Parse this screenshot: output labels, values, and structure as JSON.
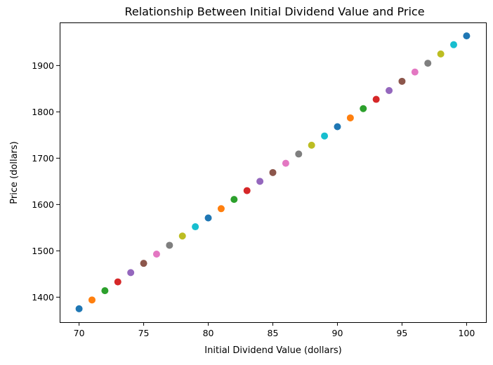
{
  "chart_data": {
    "type": "scatter",
    "title": "Relationship Between Initial Dividend Value and Price",
    "xlabel": "Initial Dividend Value (dollars)",
    "ylabel": "Price (dollars)",
    "xlim": [
      68.5,
      101.5
    ],
    "ylim": [
      1346,
      1993
    ],
    "xticks": [
      70,
      75,
      80,
      85,
      90,
      95,
      100
    ],
    "yticks": [
      1400,
      1500,
      1600,
      1700,
      1800,
      1900
    ],
    "grid": false,
    "x": [
      70,
      71,
      72,
      73,
      74,
      75,
      76,
      77,
      78,
      79,
      80,
      81,
      82,
      83,
      84,
      85,
      86,
      87,
      88,
      89,
      90,
      91,
      92,
      93,
      94,
      95,
      96,
      97,
      98,
      99,
      100
    ],
    "y": [
      1375,
      1394,
      1414,
      1433,
      1453,
      1473,
      1493,
      1512,
      1532,
      1552,
      1571,
      1591,
      1611,
      1630,
      1650,
      1669,
      1689,
      1709,
      1728,
      1748,
      1768,
      1787,
      1807,
      1827,
      1846,
      1866,
      1886,
      1905,
      1925,
      1945,
      1964
    ],
    "colors": [
      "#1f77b4",
      "#ff7f0e",
      "#2ca02c",
      "#d62728",
      "#9467bd",
      "#8c564b",
      "#e377c2",
      "#7f7f7f",
      "#bcbd22",
      "#17becf"
    ]
  }
}
